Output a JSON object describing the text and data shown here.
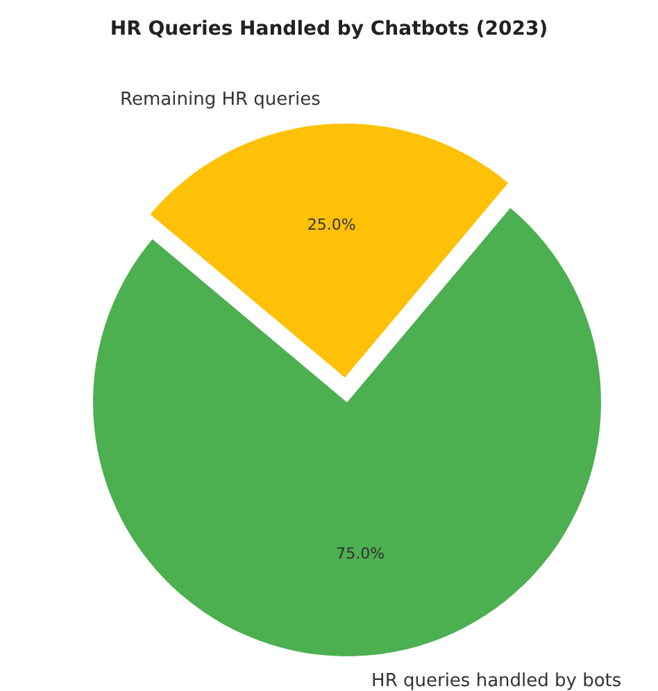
{
  "chart_data": {
    "type": "pie",
    "title": "HR Queries Handled by Chatbots (2023)",
    "categories": [
      "HR queries handled by bots",
      "Remaining HR queries"
    ],
    "values": [
      75,
      25
    ],
    "colors": [
      "#4caf50",
      "#ffc107"
    ],
    "value_labels": [
      "75.0%",
      "25.0%"
    ]
  }
}
